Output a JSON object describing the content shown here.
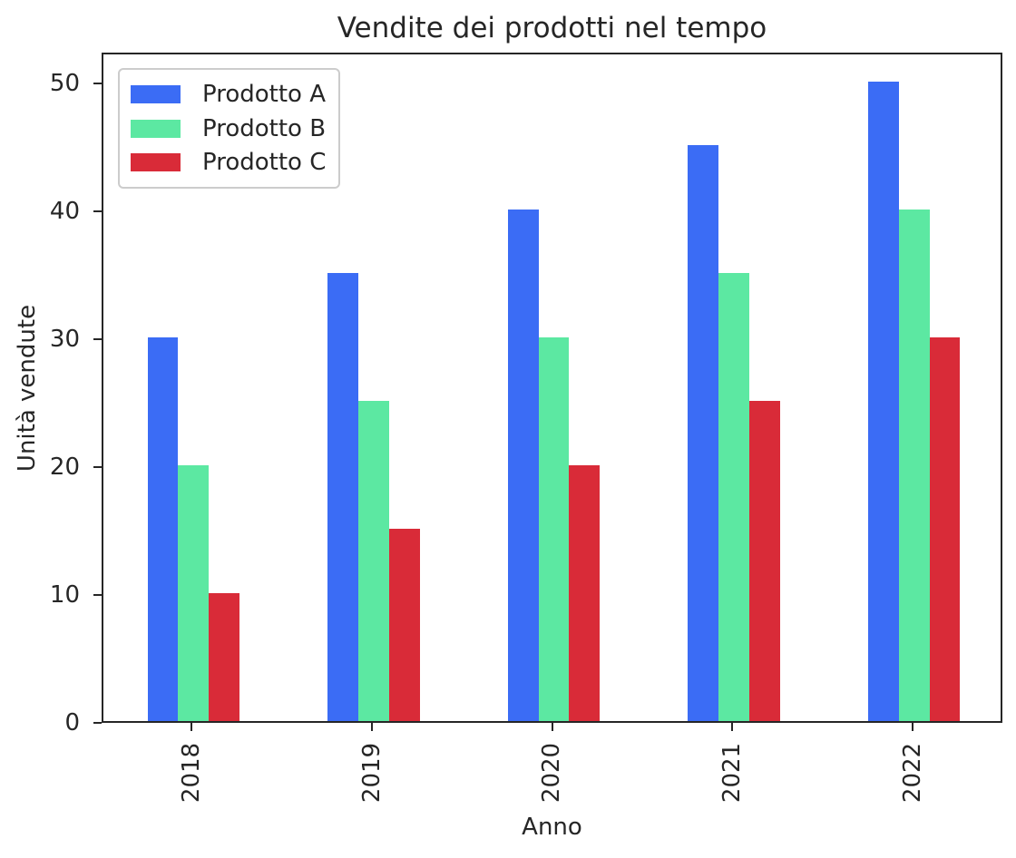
{
  "chart_data": {
    "type": "bar",
    "title": "Vendite dei prodotti nel tempo",
    "xlabel": "Anno",
    "ylabel": "Unità vendute",
    "categories": [
      "2018",
      "2019",
      "2020",
      "2021",
      "2022"
    ],
    "series": [
      {
        "name": "Prodotto A",
        "color": "#3B6CF5",
        "values": [
          30,
          35,
          40,
          45,
          50
        ]
      },
      {
        "name": "Prodotto B",
        "color": "#5CE8A2",
        "values": [
          20,
          25,
          30,
          35,
          40
        ]
      },
      {
        "name": "Prodotto C",
        "color": "#D92B38",
        "values": [
          10,
          15,
          20,
          25,
          30
        ]
      }
    ],
    "yticks": [
      0,
      10,
      20,
      30,
      40,
      50
    ],
    "ylim": [
      0,
      52.4
    ],
    "xlim": [
      -0.5,
      4.5
    ],
    "bar_width_units": 0.17,
    "xtick_rotation": 90,
    "grid": false,
    "legend_position": "upper-left",
    "background": "#ffffff",
    "spine_color": "#262626",
    "text_color": "#262626"
  }
}
